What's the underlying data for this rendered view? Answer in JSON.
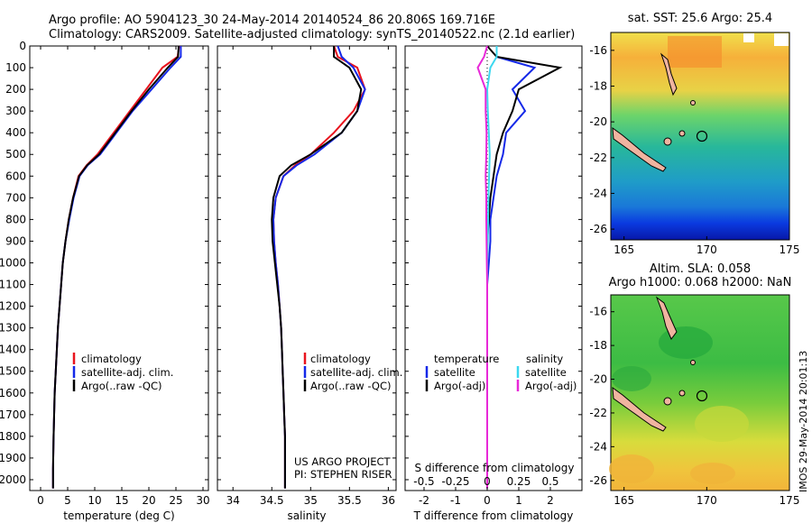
{
  "header": {
    "line1": "Argo profile: AO 5904123_30 24-May-2014 20140524_86 20.806S 169.716E",
    "line2": "Climatology: CARS2009. Satellite-adjusted climatology: synTS_20140522.nc (2.1d earlier)"
  },
  "depth_ticks": [
    "0",
    "100",
    "200",
    "300",
    "400",
    "500",
    "600",
    "700",
    "800",
    "900",
    "1000",
    "1100",
    "1200",
    "1300",
    "1400",
    "1500",
    "1600",
    "1700",
    "1800",
    "1900",
    "2000"
  ],
  "panels": {
    "temperature": {
      "xlabel": "temperature (deg C)",
      "xticks": [
        "0",
        "5",
        "10",
        "15",
        "20",
        "25",
        "30"
      ],
      "legend": [
        "climatology",
        "satellite-adj. clim.",
        "Argo(..raw -QC)"
      ]
    },
    "salinity": {
      "xlabel": "salinity",
      "xticks": [
        "34",
        "34.5",
        "35",
        "35.5",
        "36"
      ],
      "legend": [
        "climatology",
        "satellite-adj. clim.",
        "Argo(..raw -QC)"
      ],
      "credit1": "US ARGO PROJECT",
      "credit2": "PI: STEPHEN RISER"
    },
    "difference": {
      "xlabel": "T difference from climatology",
      "top_axis_label": "S difference from climatology",
      "t_ticks": [
        "-2",
        "-1",
        "0",
        "1",
        "2"
      ],
      "s_ticks": [
        "-0.5",
        "-0.25",
        "0",
        "0.25",
        "0.5"
      ],
      "legend_t_title": "temperature",
      "legend_s_title": "salinity",
      "legend_t": [
        "satellite",
        "Argo(-adj)"
      ],
      "legend_s": [
        "satellite",
        "Argo(-adj)"
      ]
    }
  },
  "maps": {
    "sst": {
      "title": "sat. SST: 25.6 Argo: 25.4",
      "lat_ticks": [
        "-16",
        "-18",
        "-20",
        "-22",
        "-24",
        "-26"
      ],
      "lon_ticks": [
        "165",
        "170",
        "175"
      ]
    },
    "sla": {
      "title1": "Altim. SLA: 0.058",
      "title2": "Argo h1000: 0.068 h2000: NaN",
      "lat_ticks": [
        "-16",
        "-18",
        "-20",
        "-22",
        "-24",
        "-26"
      ],
      "lon_ticks": [
        "165",
        "170",
        "175"
      ]
    },
    "stamp": "IMOS 29-May-2014 20:01:13"
  },
  "colors": {
    "climatology": "#e8141e",
    "satellite": "#1428e8",
    "argo": "#000000",
    "sal_satellite": "#3cd8f0",
    "sal_argo": "#e828d8"
  },
  "chart_data": [
    {
      "type": "line",
      "title": "",
      "xlabel": "temperature (deg C)",
      "ylabel": "",
      "xlim": [
        -2,
        31
      ],
      "ylim": [
        2050,
        0
      ],
      "series": [
        {
          "name": "climatology",
          "x": [
            25.6,
            25.3,
            22.5,
            19.5,
            16.5,
            13.5,
            10.5,
            8.5,
            7.0,
            6.0,
            5.2,
            4.6,
            4.1,
            3.8,
            3.5,
            3.2,
            3.0,
            2.8,
            2.6,
            2.5,
            2.4,
            2.3,
            2.3
          ],
          "y": [
            0,
            50,
            100,
            200,
            300,
            400,
            500,
            550,
            600,
            700,
            800,
            900,
            1000,
            1100,
            1200,
            1300,
            1400,
            1500,
            1600,
            1700,
            1800,
            1950,
            2040
          ]
        },
        {
          "name": "satellite-adj. clim.",
          "x": [
            25.9,
            25.9,
            24.0,
            20.5,
            17.0,
            14.0,
            11.0,
            8.7,
            7.2,
            6.1,
            5.3,
            4.6,
            4.1,
            3.8,
            3.5,
            3.2,
            3.0,
            2.8,
            2.6,
            2.5,
            2.4,
            2.3,
            2.3
          ],
          "y": [
            0,
            50,
            100,
            200,
            300,
            400,
            500,
            550,
            600,
            700,
            800,
            900,
            1000,
            1100,
            1200,
            1300,
            1400,
            1500,
            1600,
            1700,
            1800,
            1950,
            2040
          ]
        },
        {
          "name": "Argo(..raw -QC)",
          "x": [
            25.5,
            25.4,
            23.5,
            20.0,
            16.8,
            13.8,
            10.8,
            8.6,
            7.1,
            6.0,
            5.2,
            4.6,
            4.1,
            3.8,
            3.5,
            3.2,
            3.0,
            2.8,
            2.6,
            2.5,
            2.4,
            2.3,
            2.3
          ],
          "y": [
            0,
            50,
            100,
            200,
            300,
            400,
            500,
            550,
            600,
            700,
            800,
            900,
            1000,
            1100,
            1200,
            1300,
            1400,
            1500,
            1600,
            1700,
            1800,
            1950,
            2040
          ]
        }
      ]
    },
    {
      "type": "line",
      "title": "",
      "xlabel": "salinity",
      "ylabel": "",
      "xlim": [
        33.8,
        36.1
      ],
      "ylim": [
        2050,
        0
      ],
      "series": [
        {
          "name": "climatology",
          "x": [
            35.3,
            35.35,
            35.6,
            35.7,
            35.55,
            35.3,
            35.0,
            34.8,
            34.65,
            34.55,
            34.52,
            34.53,
            34.55,
            34.58,
            34.6,
            34.62,
            34.63,
            34.64,
            34.65,
            34.66,
            34.67,
            34.67,
            34.67
          ],
          "y": [
            0,
            50,
            100,
            200,
            300,
            400,
            500,
            550,
            600,
            700,
            800,
            900,
            1000,
            1100,
            1200,
            1300,
            1400,
            1500,
            1600,
            1700,
            1800,
            1950,
            2040
          ]
        },
        {
          "name": "satellite-adj. clim.",
          "x": [
            35.35,
            35.4,
            35.55,
            35.7,
            35.6,
            35.4,
            35.05,
            34.82,
            34.65,
            34.55,
            34.52,
            34.53,
            34.55,
            34.58,
            34.6,
            34.62,
            34.63,
            34.64,
            34.65,
            34.66,
            34.67,
            34.67,
            34.67
          ],
          "y": [
            0,
            50,
            100,
            200,
            300,
            400,
            500,
            550,
            600,
            700,
            800,
            900,
            1000,
            1100,
            1200,
            1300,
            1400,
            1500,
            1600,
            1700,
            1800,
            1950,
            2040
          ]
        },
        {
          "name": "Argo(..raw -QC)",
          "x": [
            35.3,
            35.3,
            35.5,
            35.65,
            35.6,
            35.4,
            35.0,
            34.75,
            34.6,
            34.52,
            34.5,
            34.51,
            34.54,
            34.57,
            34.6,
            34.62,
            34.63,
            34.64,
            34.65,
            34.66,
            34.67,
            34.67,
            34.67
          ],
          "y": [
            0,
            50,
            100,
            200,
            300,
            400,
            500,
            550,
            600,
            700,
            800,
            900,
            1000,
            1100,
            1200,
            1300,
            1400,
            1500,
            1600,
            1700,
            1800,
            1950,
            2040
          ]
        }
      ]
    },
    {
      "type": "line",
      "title": "",
      "xlabel": "T difference from climatology",
      "ylabel": "",
      "xlim": [
        -2.6,
        3.0
      ],
      "ylim": [
        2050,
        0
      ],
      "series": [
        {
          "name": "temperature satellite",
          "x": [
            0.3,
            0.3,
            1.5,
            0.8,
            1.2,
            0.6,
            0.5,
            0.3,
            0.2,
            0.1,
            0.1,
            0.05,
            0.0,
            0.0,
            0.0,
            0.0,
            0.0,
            0.0,
            0.0,
            0.0,
            0.0
          ],
          "y": [
            0,
            50,
            100,
            200,
            300,
            400,
            500,
            600,
            700,
            800,
            900,
            1000,
            1100,
            1200,
            1300,
            1400,
            1500,
            1600,
            1700,
            1800,
            2040
          ]
        },
        {
          "name": "temperature Argo(-adj)",
          "x": [
            0.0,
            0.3,
            2.3,
            1.0,
            0.8,
            0.5,
            0.3,
            0.2,
            0.1,
            0.05,
            0.0,
            0.0,
            0.0,
            0.0,
            0.0,
            0.0,
            0.0,
            0.0,
            0.0,
            0.0,
            0.0
          ],
          "y": [
            0,
            50,
            100,
            200,
            300,
            400,
            500,
            600,
            700,
            800,
            900,
            1000,
            1100,
            1200,
            1300,
            1400,
            1500,
            1600,
            1700,
            1800,
            2040
          ]
        },
        {
          "name": "salinity satellite",
          "x": [
            0.3,
            0.3,
            0.1,
            0.0,
            0.02,
            0.05,
            0.08,
            0.06,
            0.04,
            0.03,
            0.02,
            0.0,
            0.0,
            0.0,
            0.0,
            0.0,
            0.0,
            0.0,
            0.0,
            0.0,
            0.0
          ],
          "y": [
            0,
            50,
            100,
            200,
            300,
            400,
            500,
            600,
            700,
            800,
            900,
            1000,
            1100,
            1200,
            1300,
            1400,
            1500,
            1600,
            1700,
            1800,
            2040
          ]
        },
        {
          "name": "salinity Argo(-adj)",
          "x": [
            0.0,
            -0.1,
            -0.3,
            -0.05,
            -0.05,
            -0.02,
            -0.03,
            -0.05,
            -0.03,
            -0.03,
            -0.02,
            -0.01,
            0.0,
            0.0,
            0.0,
            0.0,
            0.0,
            0.0,
            0.0,
            0.0,
            0.0
          ],
          "y": [
            0,
            50,
            100,
            200,
            300,
            400,
            500,
            600,
            700,
            800,
            900,
            1000,
            1100,
            1200,
            1300,
            1400,
            1500,
            1600,
            1700,
            1800,
            2040
          ]
        }
      ]
    }
  ]
}
